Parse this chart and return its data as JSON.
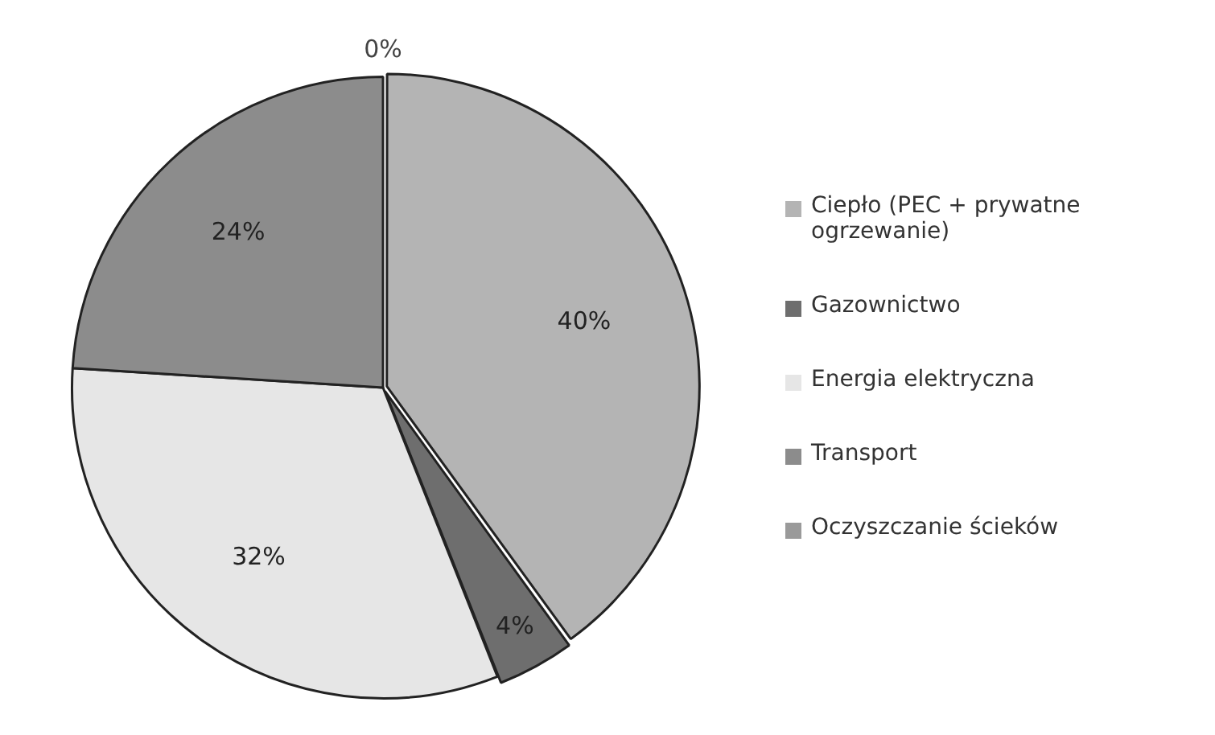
{
  "chart_data": {
    "type": "pie",
    "categories": [
      "Ciepło (PEC + prywatne ogrzewanie)",
      "Gazownictwo",
      "Energia elektryczna",
      "Transport",
      "Oczyszczanie ścieków"
    ],
    "values": [
      40,
      4,
      32,
      24,
      0
    ],
    "colors": [
      "#b4b4b4",
      "#6e6e6e",
      "#e6e6e6",
      "#8c8c8c",
      "#9a9a9a"
    ],
    "value_labels": [
      "40%",
      "4%",
      "32%",
      "24%",
      "0%"
    ],
    "legend": "right"
  }
}
